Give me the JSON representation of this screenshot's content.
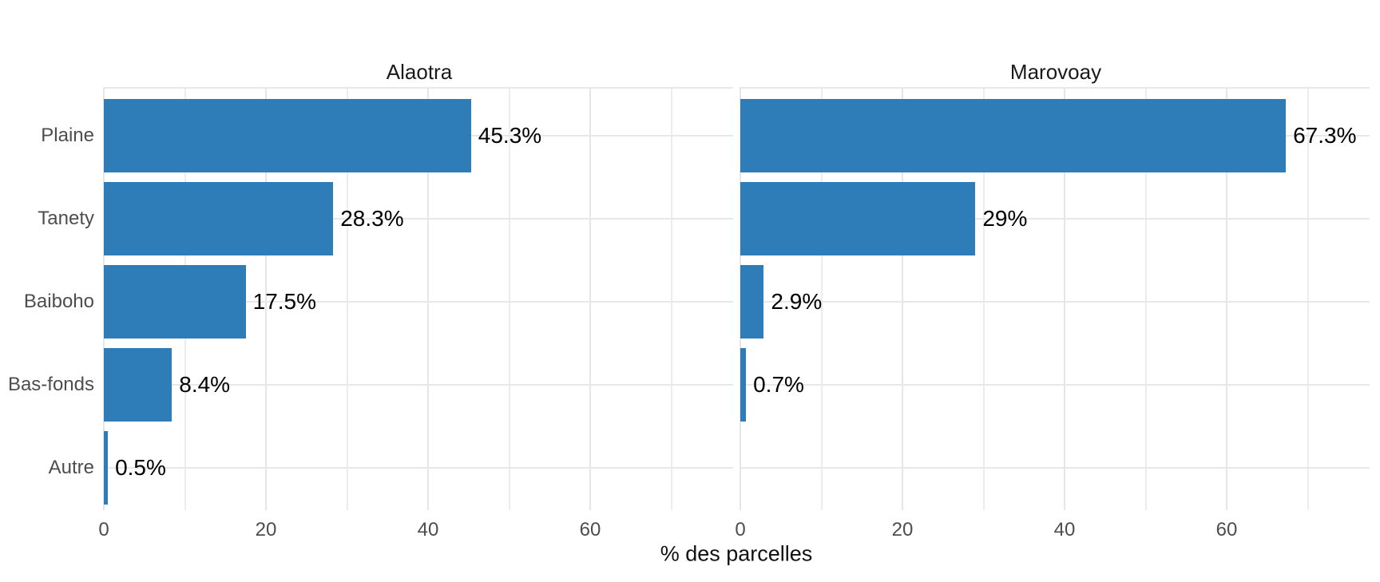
{
  "chart_data": {
    "type": "bar",
    "orientation": "horizontal",
    "title": "",
    "xlabel": "% des parcelles",
    "ylabel": "",
    "categories": [
      "Plaine",
      "Tanety",
      "Baiboho",
      "Bas-fonds",
      "Autre"
    ],
    "facets": [
      {
        "title": "Alaotra",
        "values": [
          45.3,
          28.3,
          17.5,
          8.4,
          0.5
        ],
        "value_labels": [
          "45.3%",
          "28.3%",
          "17.5%",
          "8.4%",
          "0.5%"
        ]
      },
      {
        "title": "Marovoay",
        "values": [
          67.3,
          29,
          2.9,
          0.7,
          null
        ],
        "value_labels": [
          "67.3%",
          "29%",
          "2.9%",
          "0.7%",
          null
        ]
      }
    ],
    "x_ticks": [
      0,
      20,
      40,
      60
    ],
    "x_minor_gridlines": [
      10,
      30,
      50,
      70
    ],
    "xlim": [
      0,
      77.6
    ],
    "grid": "on",
    "legend": "none",
    "bar_color": "#2E7CB8",
    "gridline_color": "#E8E8E8",
    "axis_text_color": "#4D4D4D",
    "strip_text_color": "#1A1A1A",
    "label_text_color": "#000000"
  }
}
